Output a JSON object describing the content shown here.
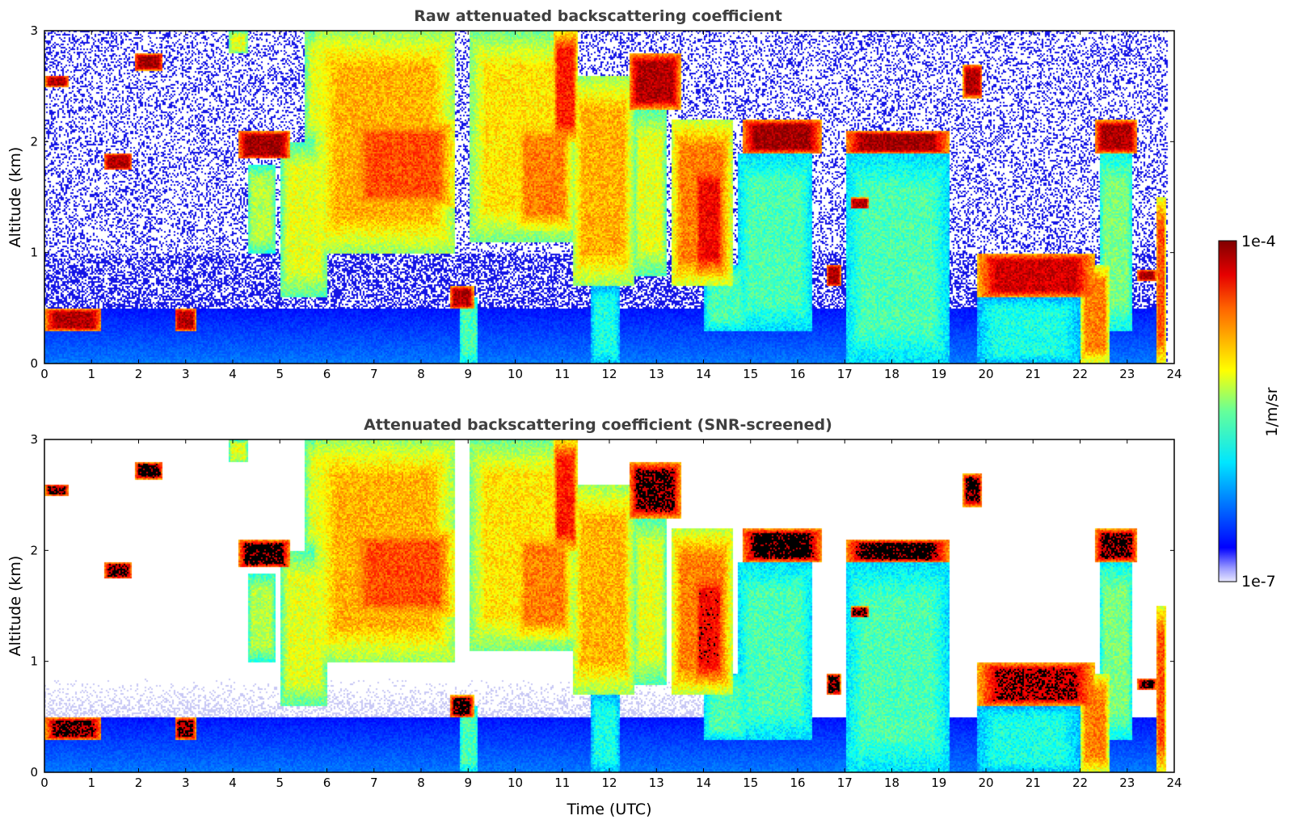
{
  "chart_data": [
    {
      "type": "heatmap",
      "title": "Raw attenuated backscattering coefficient",
      "xlabel": "",
      "ylabel": "Altitude (km)",
      "xlim": [
        0,
        24
      ],
      "ylim": [
        0,
        3
      ],
      "xticks": [
        "0",
        "1",
        "2",
        "3",
        "4",
        "5",
        "6",
        "7",
        "8",
        "9",
        "10",
        "11",
        "12",
        "13",
        "14",
        "15",
        "16",
        "17",
        "18",
        "19",
        "20",
        "21",
        "22",
        "23",
        "24"
      ],
      "yticks": [
        "0",
        "1",
        "2",
        "3"
      ],
      "screened": false
    },
    {
      "type": "heatmap",
      "title": "Attenuated backscattering coefficient (SNR-screened)",
      "xlabel": "Time (UTC)",
      "ylabel": "Altitude (km)",
      "xlim": [
        0,
        24
      ],
      "ylim": [
        0,
        3
      ],
      "xticks": [
        "0",
        "1",
        "2",
        "3",
        "4",
        "5",
        "6",
        "7",
        "8",
        "9",
        "10",
        "11",
        "12",
        "13",
        "14",
        "15",
        "16",
        "17",
        "18",
        "19",
        "20",
        "21",
        "22",
        "23",
        "24"
      ],
      "yticks": [
        "0",
        "1",
        "2",
        "3"
      ],
      "screened": true
    }
  ],
  "colorbar": {
    "label": "1/m/sr",
    "max_label": "1e-4",
    "min_label": "1e-7",
    "colormap": "jet",
    "scale": "log"
  },
  "features": [
    {
      "x0": 0.0,
      "x1": 1.2,
      "y0": 0.3,
      "y1": 0.5,
      "v": 0.95
    },
    {
      "x0": 2.75,
      "x1": 3.2,
      "y0": 0.3,
      "y1": 0.5,
      "v": 0.95
    },
    {
      "x0": 0.0,
      "x1": 0.5,
      "y0": 2.5,
      "y1": 2.6,
      "v": 0.95
    },
    {
      "x0": 1.9,
      "x1": 2.5,
      "y0": 2.65,
      "y1": 2.8,
      "v": 0.97
    },
    {
      "x0": 1.25,
      "x1": 1.85,
      "y0": 1.75,
      "y1": 1.9,
      "v": 0.95
    },
    {
      "x0": 4.1,
      "x1": 5.2,
      "y0": 1.85,
      "y1": 2.1,
      "v": 0.97
    },
    {
      "x0": 4.3,
      "x1": 4.9,
      "y0": 1.0,
      "y1": 1.8,
      "v": 0.55
    },
    {
      "x0": 5.0,
      "x1": 6.0,
      "y0": 0.6,
      "y1": 2.0,
      "v": 0.6
    },
    {
      "x0": 5.7,
      "x1": 8.7,
      "y0": 1.0,
      "y1": 3.0,
      "v": 0.7
    },
    {
      "x0": 6.5,
      "x1": 8.7,
      "y0": 1.4,
      "y1": 2.2,
      "v": 0.8
    },
    {
      "x0": 5.5,
      "x1": 6.5,
      "y0": 2.0,
      "y1": 3.0,
      "v": 0.6
    },
    {
      "x0": 3.9,
      "x1": 4.3,
      "y0": 2.8,
      "y1": 3.0,
      "v": 0.6
    },
    {
      "x0": 8.6,
      "x1": 9.1,
      "y0": 0.5,
      "y1": 0.7,
      "v": 0.95
    },
    {
      "x0": 8.8,
      "x1": 9.2,
      "y0": 0.0,
      "y1": 0.6,
      "v": 0.45
    },
    {
      "x0": 9.0,
      "x1": 11.2,
      "y0": 1.1,
      "y1": 3.0,
      "v": 0.65
    },
    {
      "x0": 10.0,
      "x1": 11.2,
      "y0": 1.2,
      "y1": 2.2,
      "v": 0.75
    },
    {
      "x0": 10.8,
      "x1": 11.3,
      "y0": 2.0,
      "y1": 3.0,
      "v": 0.85
    },
    {
      "x0": 11.2,
      "x1": 12.5,
      "y0": 0.7,
      "y1": 2.6,
      "v": 0.7
    },
    {
      "x0": 11.6,
      "x1": 12.2,
      "y0": 0.0,
      "y1": 0.7,
      "v": 0.4
    },
    {
      "x0": 12.4,
      "x1": 13.5,
      "y0": 2.3,
      "y1": 2.8,
      "v": 0.95
    },
    {
      "x0": 12.5,
      "x1": 13.2,
      "y0": 0.8,
      "y1": 2.3,
      "v": 0.6
    },
    {
      "x0": 13.3,
      "x1": 14.6,
      "y0": 0.7,
      "y1": 2.2,
      "v": 0.75
    },
    {
      "x0": 13.8,
      "x1": 14.4,
      "y0": 0.8,
      "y1": 1.8,
      "v": 0.88
    },
    {
      "x0": 14.0,
      "x1": 14.9,
      "y0": 0.3,
      "y1": 0.9,
      "v": 0.45
    },
    {
      "x0": 14.8,
      "x1": 16.5,
      "y0": 1.9,
      "y1": 2.2,
      "v": 0.97
    },
    {
      "x0": 14.7,
      "x1": 16.3,
      "y0": 0.3,
      "y1": 1.9,
      "v": 0.45
    },
    {
      "x0": 16.6,
      "x1": 16.9,
      "y0": 0.7,
      "y1": 0.9,
      "v": 0.95
    },
    {
      "x0": 17.1,
      "x1": 17.5,
      "y0": 1.4,
      "y1": 1.5,
      "v": 0.95
    },
    {
      "x0": 17.0,
      "x1": 19.2,
      "y0": 1.9,
      "y1": 2.1,
      "v": 0.97
    },
    {
      "x0": 17.0,
      "x1": 19.2,
      "y0": 0.0,
      "y1": 1.9,
      "v": 0.45
    },
    {
      "x0": 19.5,
      "x1": 19.9,
      "y0": 2.4,
      "y1": 2.7,
      "v": 0.95
    },
    {
      "x0": 19.8,
      "x1": 22.3,
      "y0": 0.6,
      "y1": 1.0,
      "v": 0.92
    },
    {
      "x0": 19.8,
      "x1": 22.0,
      "y0": 0.0,
      "y1": 0.6,
      "v": 0.4
    },
    {
      "x0": 22.0,
      "x1": 22.6,
      "y0": 0.0,
      "y1": 0.9,
      "v": 0.75
    },
    {
      "x0": 22.3,
      "x1": 23.2,
      "y0": 1.9,
      "y1": 2.2,
      "v": 0.95
    },
    {
      "x0": 22.4,
      "x1": 23.1,
      "y0": 0.3,
      "y1": 1.9,
      "v": 0.5
    },
    {
      "x0": 23.2,
      "x1": 23.6,
      "y0": 0.75,
      "y1": 0.85,
      "v": 0.95
    },
    {
      "x0": 23.6,
      "x1": 23.8,
      "y0": 0.0,
      "y1": 1.5,
      "v": 0.8
    }
  ]
}
